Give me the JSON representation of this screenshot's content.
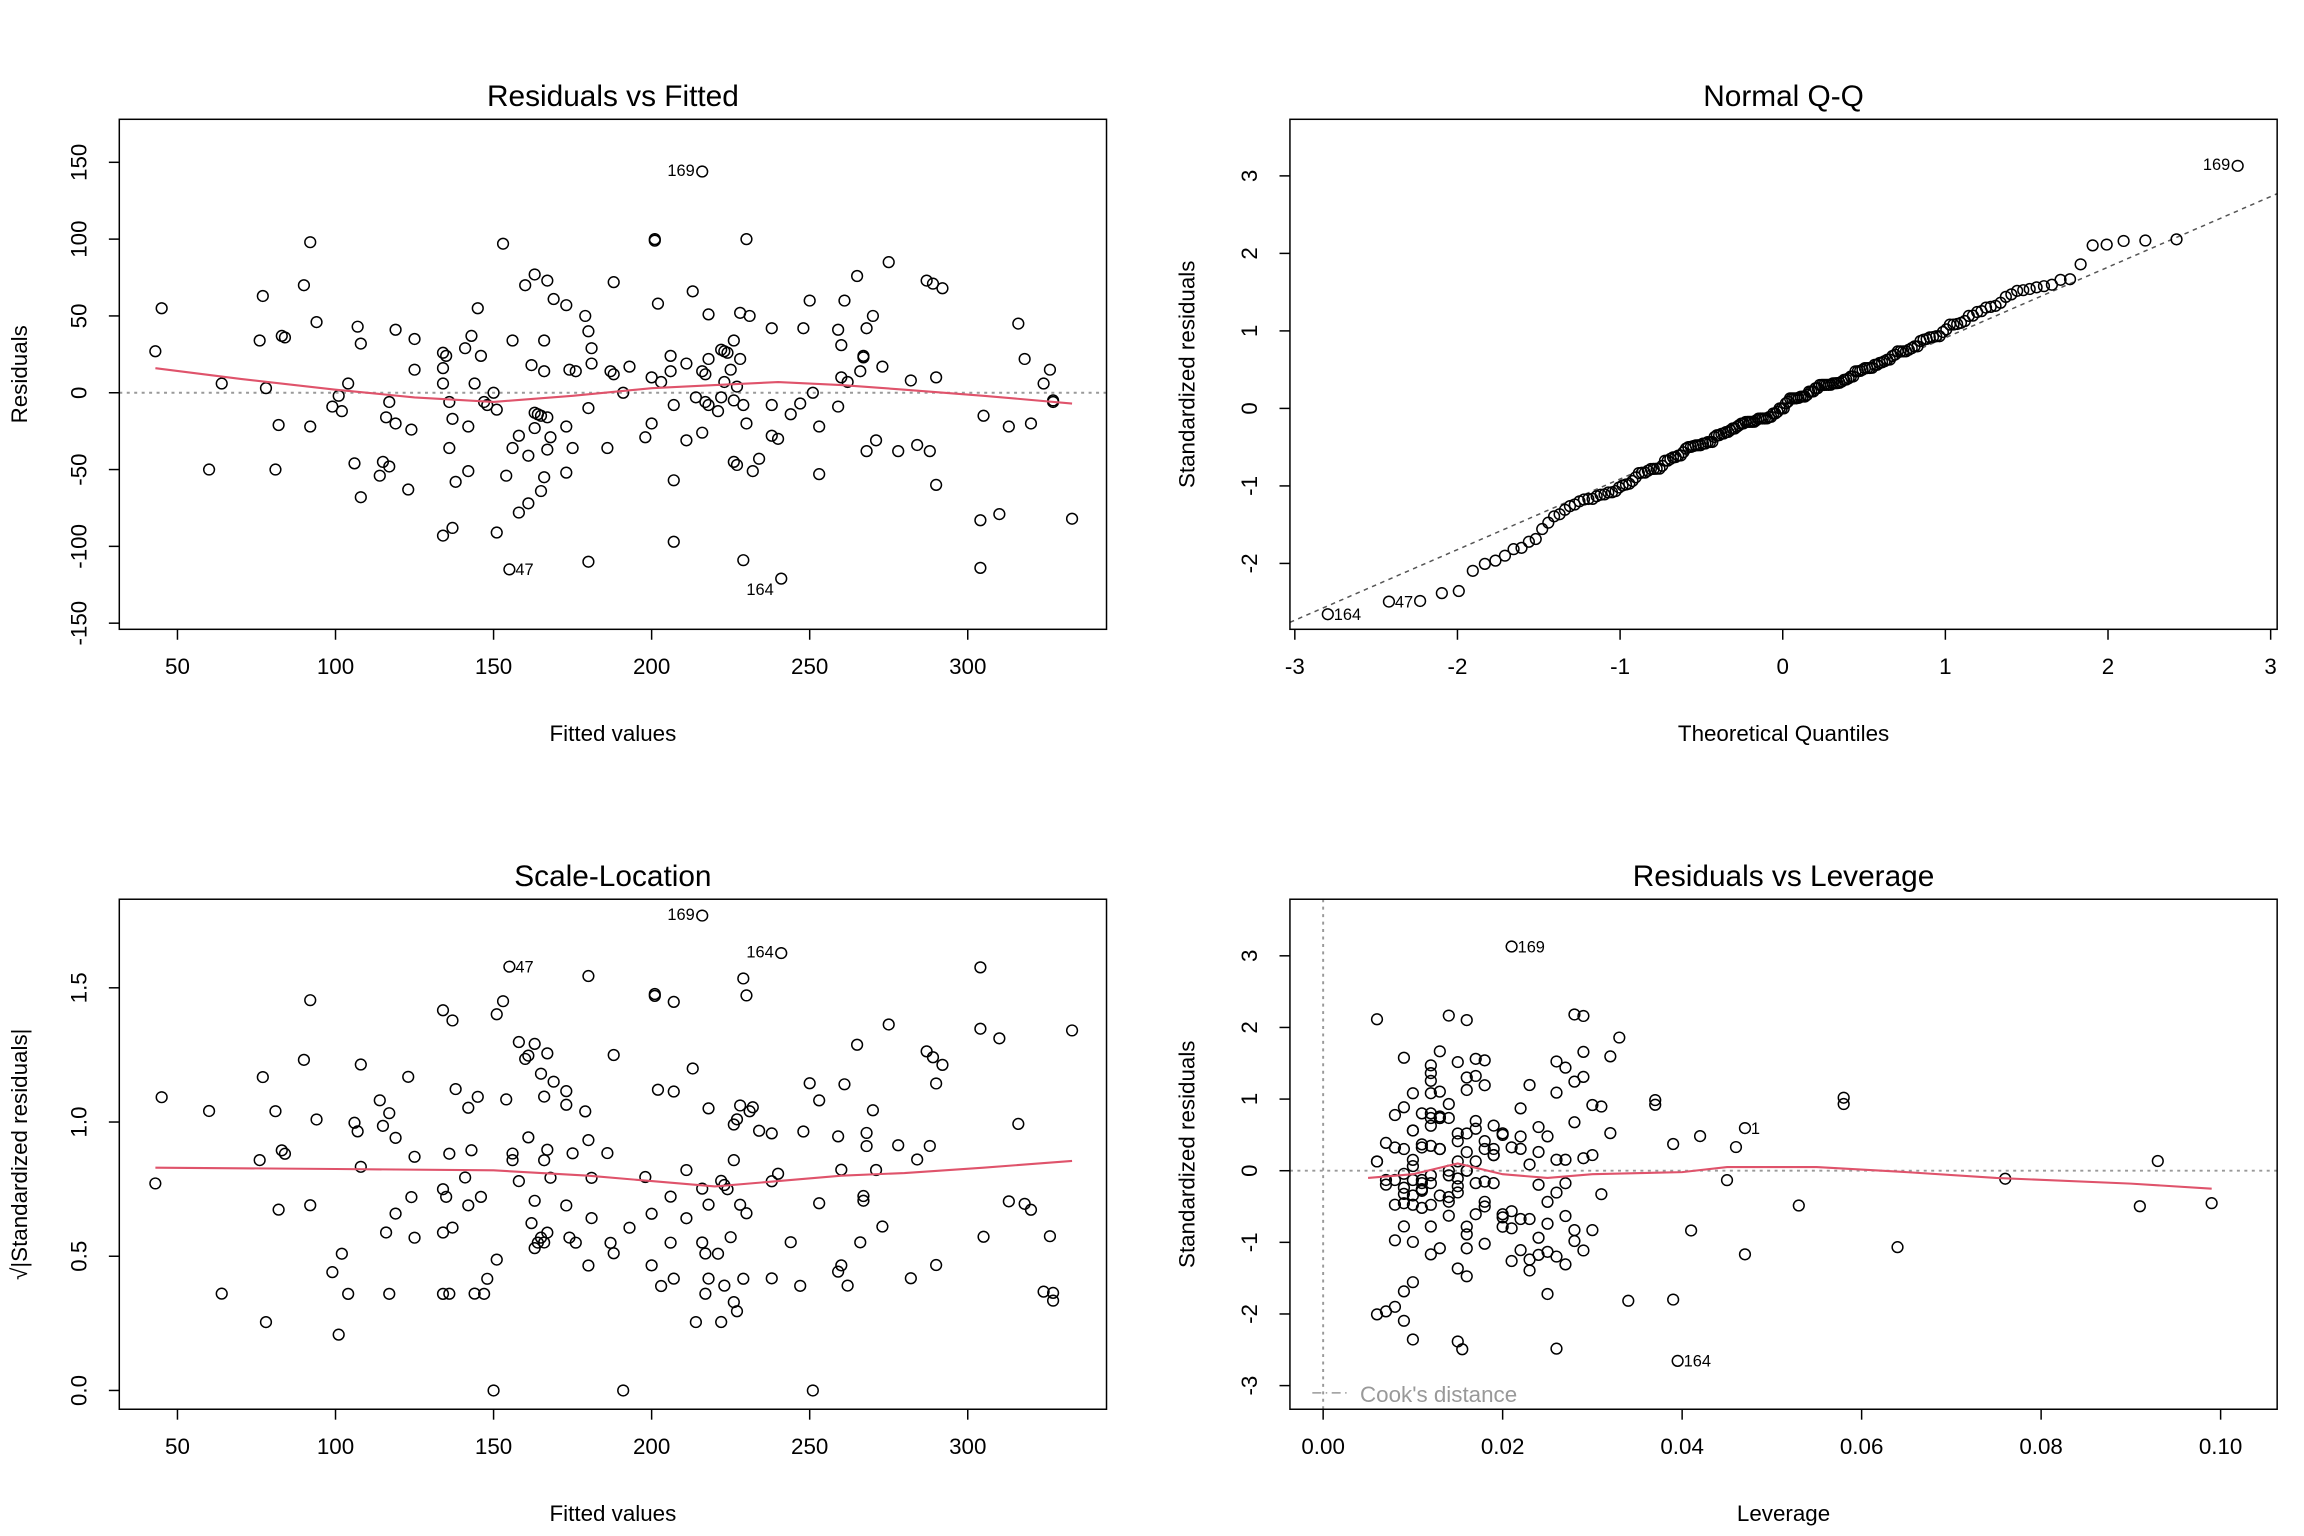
{
  "colors": {
    "points": "#000000",
    "smooth": "#DF536B",
    "reference": "#999999",
    "qqline": "#555555"
  },
  "observations": {
    "columns": [
      "fitted",
      "residual",
      "leverage",
      "id"
    ],
    "rows": [
      [
        43,
        27,
        0.047,
        "1"
      ],
      [
        45,
        55,
        0.018,
        ""
      ],
      [
        64,
        6,
        0.015,
        ""
      ],
      [
        60,
        -50,
        0.016,
        ""
      ],
      [
        76,
        34,
        0.014,
        ""
      ],
      [
        77,
        63,
        0.012,
        ""
      ],
      [
        78,
        3,
        0.01,
        ""
      ],
      [
        82,
        -21,
        0.009,
        ""
      ],
      [
        81,
        -50,
        0.013,
        ""
      ],
      [
        83,
        37,
        0.011,
        ""
      ],
      [
        84,
        36,
        0.008,
        ""
      ],
      [
        90,
        70,
        0.015,
        ""
      ],
      [
        92,
        98,
        0.006,
        ""
      ],
      [
        92,
        -22,
        0.012,
        ""
      ],
      [
        94,
        46,
        0.058,
        ""
      ],
      [
        99,
        -9,
        0.007,
        ""
      ],
      [
        101,
        -2,
        0.009,
        ""
      ],
      [
        102,
        -12,
        0.011,
        ""
      ],
      [
        104,
        6,
        0.006,
        ""
      ],
      [
        106,
        -46,
        0.01,
        ""
      ],
      [
        107,
        43,
        0.014,
        ""
      ],
      [
        108,
        32,
        0.017,
        ""
      ],
      [
        108,
        -68,
        0.016,
        ""
      ],
      [
        114,
        -54,
        0.012,
        ""
      ],
      [
        115,
        -45,
        0.008,
        ""
      ],
      [
        116,
        -16,
        0.013,
        ""
      ],
      [
        117,
        -6,
        0.007,
        ""
      ],
      [
        117,
        -48,
        0.064,
        ""
      ],
      [
        119,
        -20,
        0.018,
        ""
      ],
      [
        119,
        41,
        0.009,
        ""
      ],
      [
        123,
        -63,
        0.015,
        ""
      ],
      [
        124,
        -24,
        0.011,
        ""
      ],
      [
        125,
        15,
        0.008,
        ""
      ],
      [
        125,
        35,
        0.013,
        ""
      ],
      [
        134,
        26,
        0.01,
        ""
      ],
      [
        134,
        16,
        0.012,
        ""
      ],
      [
        134,
        6,
        0.006,
        ""
      ],
      [
        135,
        24,
        0.016,
        ""
      ],
      [
        136,
        -36,
        0.009,
        ""
      ],
      [
        136,
        -6,
        0.011,
        ""
      ],
      [
        137,
        -17,
        0.014,
        ""
      ],
      [
        138,
        -58,
        0.021,
        ""
      ],
      [
        137,
        -88,
        0.008,
        ""
      ],
      [
        134,
        -93,
        0.006,
        ""
      ],
      [
        141,
        29,
        0.019,
        ""
      ],
      [
        142,
        -51,
        0.022,
        ""
      ],
      [
        142,
        -22,
        0.01,
        ""
      ],
      [
        143,
        37,
        0.012,
        ""
      ],
      [
        144,
        6,
        0.017,
        ""
      ],
      [
        145,
        55,
        0.023,
        ""
      ],
      [
        146,
        24,
        0.015,
        ""
      ],
      [
        147,
        -6,
        0.008,
        ""
      ],
      [
        148,
        -8,
        0.011,
        ""
      ],
      [
        150,
        0,
        0.014,
        ""
      ],
      [
        151,
        -11,
        0.009,
        ""
      ],
      [
        151,
        -91,
        0.007,
        ""
      ],
      [
        153,
        97,
        0.016,
        ""
      ],
      [
        154,
        -54,
        0.024,
        ""
      ],
      [
        155,
        -115,
        0.0155,
        "47"
      ],
      [
        156,
        34,
        0.013,
        ""
      ],
      [
        156,
        -36,
        0.012,
        ""
      ],
      [
        158,
        -28,
        0.02,
        ""
      ],
      [
        158,
        -78,
        0.009,
        ""
      ],
      [
        160,
        70,
        0.026,
        ""
      ],
      [
        161,
        -41,
        0.016,
        ""
      ],
      [
        161,
        -72,
        0.01,
        ""
      ],
      [
        162,
        18,
        0.007,
        ""
      ],
      [
        163,
        77,
        0.013,
        ""
      ],
      [
        163,
        -23,
        0.018,
        ""
      ],
      [
        163,
        -13,
        0.011,
        ""
      ],
      [
        164,
        -14,
        0.015,
        ""
      ],
      [
        165,
        -64,
        0.023,
        ""
      ],
      [
        165,
        -15,
        0.009,
        ""
      ],
      [
        166,
        14,
        0.019,
        ""
      ],
      [
        166,
        34,
        0.012,
        ""
      ],
      [
        166,
        -55,
        0.026,
        ""
      ],
      [
        167,
        -16,
        0.01,
        ""
      ],
      [
        167,
        -37,
        0.021,
        ""
      ],
      [
        167,
        73,
        0.009,
        ""
      ],
      [
        168,
        -29,
        0.014,
        ""
      ],
      [
        169,
        61,
        0.017,
        ""
      ],
      [
        173,
        -22,
        0.008,
        ""
      ],
      [
        173,
        57,
        0.028,
        ""
      ],
      [
        173,
        -52,
        0.025,
        ""
      ],
      [
        174,
        15,
        0.011,
        ""
      ],
      [
        175,
        -36,
        0.016,
        ""
      ],
      [
        176,
        14,
        0.013,
        ""
      ],
      [
        179,
        50,
        0.01,
        ""
      ],
      [
        180,
        40,
        0.022,
        ""
      ],
      [
        180,
        -10,
        0.015,
        ""
      ],
      [
        181,
        29,
        0.012,
        ""
      ],
      [
        181,
        19,
        0.018,
        ""
      ],
      [
        180,
        -110,
        0.015,
        ""
      ],
      [
        186,
        -36,
        0.02,
        ""
      ],
      [
        187,
        14,
        0.009,
        ""
      ],
      [
        188,
        12,
        0.024,
        ""
      ],
      [
        188,
        72,
        0.017,
        ""
      ],
      [
        191,
        0,
        0.016,
        ""
      ],
      [
        193,
        17,
        0.011,
        ""
      ],
      [
        198,
        -29,
        0.027,
        ""
      ],
      [
        200,
        -20,
        0.014,
        ""
      ],
      [
        200,
        10,
        0.019,
        ""
      ],
      [
        201,
        100,
        0.028,
        ""
      ],
      [
        201,
        99,
        0.029,
        ""
      ],
      [
        202,
        58,
        0.012,
        ""
      ],
      [
        203,
        7,
        0.01,
        ""
      ],
      [
        206,
        24,
        0.02,
        ""
      ],
      [
        206,
        14,
        0.013,
        ""
      ],
      [
        207,
        -57,
        0.023,
        ""
      ],
      [
        207,
        -8,
        0.017,
        ""
      ],
      [
        207,
        -97,
        0.009,
        ""
      ],
      [
        211,
        -31,
        0.022,
        ""
      ],
      [
        211,
        19,
        0.015,
        ""
      ],
      [
        213,
        66,
        0.027,
        ""
      ],
      [
        214,
        -3,
        0.012,
        ""
      ],
      [
        216,
        14,
        0.018,
        ""
      ],
      [
        216,
        -26,
        0.021,
        ""
      ],
      [
        216,
        144,
        0.021,
        "169"
      ],
      [
        217,
        -6,
        0.01,
        ""
      ],
      [
        217,
        12,
        0.016,
        ""
      ],
      [
        218,
        22,
        0.025,
        ""
      ],
      [
        218,
        51,
        0.013,
        ""
      ],
      [
        218,
        -8,
        0.019,
        ""
      ],
      [
        221,
        -12,
        0.011,
        ""
      ],
      [
        222,
        28,
        0.024,
        ""
      ],
      [
        222,
        -3,
        0.014,
        ""
      ],
      [
        223,
        7,
        0.026,
        ""
      ],
      [
        223,
        27,
        0.017,
        ""
      ],
      [
        224,
        26,
        0.01,
        ""
      ],
      [
        225,
        15,
        0.021,
        ""
      ],
      [
        226,
        34,
        0.013,
        ""
      ],
      [
        226,
        -45,
        0.028,
        ""
      ],
      [
        226,
        -5,
        0.015,
        ""
      ],
      [
        227,
        4,
        0.023,
        ""
      ],
      [
        227,
        -47,
        0.018,
        ""
      ],
      [
        228,
        52,
        0.016,
        ""
      ],
      [
        228,
        22,
        0.022,
        ""
      ],
      [
        229,
        -8,
        0.012,
        ""
      ],
      [
        229,
        -109,
        0.01,
        ""
      ],
      [
        230,
        -20,
        0.025,
        ""
      ],
      [
        230,
        100,
        0.014,
        ""
      ],
      [
        231,
        50,
        0.012,
        ""
      ],
      [
        232,
        -51,
        0.029,
        ""
      ],
      [
        234,
        -43,
        0.024,
        ""
      ],
      [
        238,
        -28,
        0.017,
        ""
      ],
      [
        238,
        42,
        0.03,
        ""
      ],
      [
        238,
        -8,
        0.027,
        ""
      ],
      [
        240,
        -30,
        0.02,
        ""
      ],
      [
        241,
        -121,
        0.0395,
        "164"
      ],
      [
        244,
        -14,
        0.026,
        ""
      ],
      [
        247,
        -7,
        0.018,
        ""
      ],
      [
        248,
        42,
        0.058,
        ""
      ],
      [
        250,
        60,
        0.029,
        ""
      ],
      [
        251,
        0,
        0.016,
        ""
      ],
      [
        253,
        -22,
        0.053,
        ""
      ],
      [
        253,
        -53,
        0.047,
        ""
      ],
      [
        259,
        41,
        0.031,
        ""
      ],
      [
        259,
        -9,
        0.024,
        ""
      ],
      [
        260,
        31,
        0.028,
        ""
      ],
      [
        260,
        10,
        0.019,
        ""
      ],
      [
        261,
        60,
        0.016,
        ""
      ],
      [
        262,
        7,
        0.027,
        ""
      ],
      [
        265,
        76,
        0.029,
        ""
      ],
      [
        266,
        14,
        0.022,
        ""
      ],
      [
        267,
        24,
        0.032,
        ""
      ],
      [
        267,
        23,
        0.02,
        ""
      ],
      [
        268,
        42,
        0.037,
        ""
      ],
      [
        268,
        -38,
        0.028,
        ""
      ],
      [
        270,
        50,
        0.026,
        ""
      ],
      [
        271,
        -31,
        0.023,
        ""
      ],
      [
        273,
        17,
        0.039,
        ""
      ],
      [
        275,
        85,
        0.033,
        ""
      ],
      [
        278,
        -38,
        0.041,
        ""
      ],
      [
        282,
        8,
        0.029,
        ""
      ],
      [
        284,
        -34,
        0.025,
        ""
      ],
      [
        287,
        73,
        0.032,
        ""
      ],
      [
        288,
        -38,
        0.03,
        ""
      ],
      [
        289,
        71,
        0.018,
        ""
      ],
      [
        290,
        10,
        0.03,
        ""
      ],
      [
        290,
        -60,
        0.027,
        ""
      ],
      [
        292,
        68,
        0.012,
        ""
      ],
      [
        304,
        -83,
        0.034,
        ""
      ],
      [
        304,
        -114,
        0.026,
        ""
      ],
      [
        305,
        -15,
        0.031,
        ""
      ],
      [
        310,
        -79,
        0.025,
        ""
      ],
      [
        313,
        -22,
        0.091,
        ""
      ],
      [
        316,
        45,
        0.037,
        ""
      ],
      [
        318,
        22,
        0.042,
        ""
      ],
      [
        320,
        -20,
        0.099,
        ""
      ],
      [
        324,
        6,
        0.093,
        ""
      ],
      [
        326,
        15,
        0.046,
        ""
      ],
      [
        327,
        -6,
        0.045,
        ""
      ],
      [
        327,
        -5,
        0.076,
        ""
      ],
      [
        333,
        -82,
        0.039,
        ""
      ]
    ]
  },
  "chart_data": [
    {
      "type": "scatter",
      "title": "Residuals vs Fitted",
      "xlabel": "Fitted values",
      "ylabel": "Residuals",
      "xlim": [
        31.6,
        343.9
      ],
      "ylim": [
        -154,
        178
      ],
      "xticks": [
        50,
        100,
        150,
        200,
        250,
        300
      ],
      "yticks": [
        -150,
        -100,
        -50,
        0,
        50,
        100,
        150
      ],
      "labeled_points": [
        "169",
        "47",
        "164"
      ],
      "reference_line": {
        "type": "horizontal",
        "value": 0,
        "style": "dotted"
      },
      "smooth": {
        "x": [
          43,
          70,
          100,
          125,
          150,
          175,
          200,
          220,
          240,
          260,
          280,
          305,
          333
        ],
        "y": [
          16,
          9,
          2,
          -3,
          -6,
          -2,
          3,
          5,
          7,
          5,
          2,
          -2,
          -7
        ]
      }
    },
    {
      "type": "scatter",
      "title": "Normal Q-Q",
      "xlabel": "Theoretical Quantiles",
      "ylabel": "Standardized residuals",
      "xlim": [
        -3.03,
        3.04
      ],
      "ylim": [
        -2.85,
        3.73
      ],
      "xticks": [
        -3,
        -2,
        -1,
        0,
        1,
        2,
        3
      ],
      "yticks": [
        -2,
        -1,
        0,
        1,
        2,
        3
      ],
      "labeled_points": [
        "169",
        "47",
        "164"
      ],
      "qq_line": {
        "x": [
          -3.03,
          3.04
        ],
        "y": [
          -2.76,
          2.77
        ],
        "style": "dashed"
      }
    },
    {
      "type": "scatter",
      "title": "Scale-Location",
      "xlabel": "Fitted values",
      "ylabel": "√|Standardized residuals|",
      "xlim": [
        31.6,
        343.9
      ],
      "ylim": [
        -0.07,
        1.83
      ],
      "xticks": [
        50,
        100,
        150,
        200,
        250,
        300
      ],
      "yticks": [
        0.0,
        0.5,
        1.0,
        1.5
      ],
      "ytick_labels": [
        "0.0",
        "0.5",
        "1.0",
        "1.5"
      ],
      "labeled_points": [
        "169",
        "164",
        "47"
      ],
      "smooth": {
        "x": [
          43,
          100,
          150,
          180,
          200,
          220,
          240,
          260,
          280,
          305,
          333
        ],
        "y": [
          0.83,
          0.825,
          0.82,
          0.8,
          0.78,
          0.76,
          0.78,
          0.8,
          0.81,
          0.83,
          0.855
        ]
      }
    },
    {
      "type": "scatter",
      "title": "Residuals vs Leverage",
      "xlabel": "Leverage",
      "ylabel": "Standardized residuals",
      "xlim": [
        -0.0037,
        0.1063
      ],
      "ylim": [
        -3.33,
        3.79
      ],
      "xticks": [
        0.0,
        0.02,
        0.04,
        0.06,
        0.08,
        0.1
      ],
      "xtick_labels": [
        "0.00",
        "0.02",
        "0.04",
        "0.06",
        "0.08",
        "0.10"
      ],
      "yticks": [
        -3,
        -2,
        -1,
        0,
        1,
        2,
        3
      ],
      "labeled_points": [
        "169",
        "1",
        "164"
      ],
      "reference_lines": [
        {
          "type": "horizontal",
          "value": 0,
          "style": "dotted"
        },
        {
          "type": "vertical",
          "value": 0,
          "style": "dotted"
        }
      ],
      "legend": {
        "label": "Cook's distance",
        "placement": "bottom-left"
      },
      "smooth": {
        "x": [
          0.005,
          0.01,
          0.015,
          0.02,
          0.025,
          0.03,
          0.04,
          0.045,
          0.055,
          0.065,
          0.075,
          0.09,
          0.099
        ],
        "y": [
          -0.1,
          -0.05,
          0.1,
          -0.05,
          -0.1,
          -0.05,
          -0.02,
          0.05,
          0.05,
          -0.02,
          -0.1,
          -0.18,
          -0.25
        ]
      }
    }
  ]
}
